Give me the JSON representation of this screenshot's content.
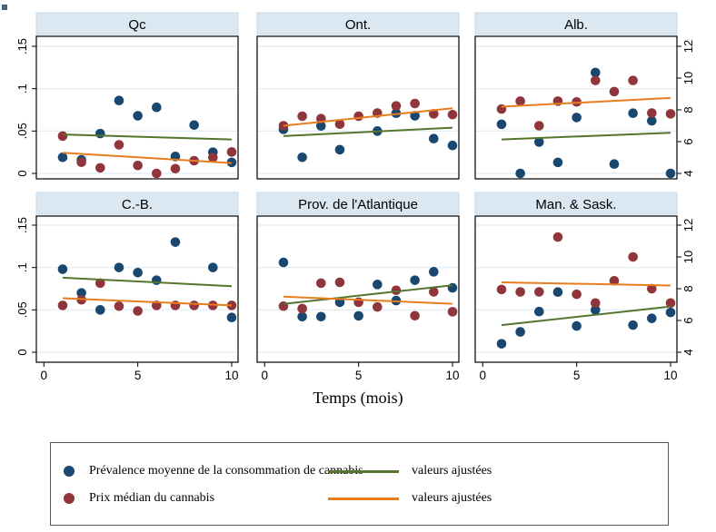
{
  "figure": {
    "xlabel": "Temps (mois)"
  },
  "colors": {
    "prevalence": "#1a476f",
    "price": "#90353b",
    "fit_prevalence": "#55752f",
    "fit_price": "#e87d1e",
    "band": "#dbe8f2",
    "band_border": "#c6daea",
    "gridline": "#dfecf5",
    "plot_border": "#000000",
    "legend_border": "#585858"
  },
  "legend": {
    "prevalence": "Prévalence moyenne de la consommation de cannabis",
    "price": "Prix médian du cannabis",
    "fitted_prevalence": "valeurs ajustées",
    "fitted_price": "valeurs ajustées"
  },
  "chart_data": {
    "type": "scatter",
    "layout": "2x3_small_multiples",
    "grid": true,
    "xlabel": "Temps (mois)",
    "x": [
      1,
      2,
      3,
      4,
      5,
      6,
      7,
      8,
      9,
      10
    ],
    "x_ticks": [
      0,
      5,
      10
    ],
    "x_range": [
      0,
      10.7
    ],
    "left_axis": {
      "series": "prevalence_moyenne",
      "ticks": [
        "0",
        ".05",
        ".1",
        ".15"
      ],
      "tick_values": [
        0,
        0.05,
        0.1,
        0.15
      ],
      "range": [
        0,
        0.157
      ]
    },
    "right_axis": {
      "series": "prix_median",
      "ticks": [
        "4",
        "6",
        "8",
        "10",
        "12"
      ],
      "tick_values": [
        4,
        6,
        8,
        10,
        12
      ],
      "range": [
        4,
        12.5
      ]
    },
    "series_legend": [
      {
        "name": "Prévalence moyenne de la consommation de cannabis",
        "marker": "dot",
        "color_key": "prevalence",
        "axis": "left"
      },
      {
        "name": "Prix médian du cannabis",
        "marker": "dot",
        "color_key": "price",
        "axis": "right"
      },
      {
        "name": "valeurs ajustées",
        "marker": "line",
        "color_key": "fit_prevalence",
        "axis": "left"
      },
      {
        "name": "valeurs ajustées",
        "marker": "line",
        "color_key": "fit_price",
        "axis": "right"
      }
    ],
    "panels": [
      {
        "title": "Qc",
        "prevalence": [
          0.019,
          0.016,
          0.047,
          0.086,
          0.068,
          0.078,
          0.02,
          0.057,
          0.025,
          0.013
        ],
        "price": [
          6.35,
          4.7,
          4.35,
          5.8,
          4.5,
          4.0,
          4.3,
          4.8,
          5.0,
          5.35
        ],
        "fit_prevalence": [
          0.046,
          0.04
        ],
        "fit_price": [
          5.3,
          4.65
        ]
      },
      {
        "title": "Ont.",
        "prevalence": [
          0.052,
          0.019,
          0.056,
          0.028,
          null,
          0.05,
          0.071,
          0.068,
          0.041,
          0.033
        ],
        "price": [
          7.0,
          7.6,
          7.45,
          7.1,
          7.6,
          7.8,
          8.25,
          8.4,
          7.75,
          7.7
        ],
        "fit_prevalence": [
          0.044,
          0.054
        ],
        "fit_price": [
          7.0,
          8.1
        ]
      },
      {
        "title": "Alb.",
        "prevalence": [
          0.058,
          0.0,
          0.037,
          0.013,
          0.066,
          0.119,
          0.011,
          0.071,
          0.062,
          0.0
        ],
        "price": [
          8.05,
          8.55,
          7.0,
          8.55,
          8.5,
          9.85,
          9.15,
          9.85,
          7.8,
          7.75
        ],
        "fit_prevalence": [
          0.04,
          0.048
        ],
        "fit_price": [
          8.2,
          8.75
        ]
      },
      {
        "title": "C.-B.",
        "prevalence": [
          0.098,
          0.07,
          0.05,
          0.1,
          0.094,
          0.085,
          0.13,
          null,
          0.1,
          0.041
        ],
        "price": [
          6.95,
          7.3,
          8.35,
          6.9,
          6.6,
          6.95,
          6.95,
          6.95,
          6.95,
          6.95
        ],
        "fit_prevalence": [
          0.088,
          0.078
        ],
        "fit_price": [
          7.4,
          6.95
        ]
      },
      {
        "title": "Prov. de l'Atlantique",
        "prevalence": [
          0.106,
          0.042,
          0.042,
          0.059,
          0.043,
          0.08,
          0.061,
          0.085,
          0.095,
          0.076
        ],
        "price": [
          6.9,
          6.75,
          8.35,
          8.4,
          7.15,
          6.85,
          7.9,
          6.3,
          7.8,
          6.55
        ],
        "fit_prevalence": [
          0.057,
          0.079
        ],
        "fit_price": [
          7.5,
          7.05
        ]
      },
      {
        "title": "Man. & Sask.",
        "prevalence": [
          0.01,
          0.024,
          0.048,
          0.071,
          0.031,
          0.05,
          null,
          0.032,
          0.04,
          0.047
        ],
        "price": [
          7.95,
          7.8,
          7.8,
          11.25,
          7.65,
          7.1,
          8.5,
          10.0,
          8.0,
          7.1
        ],
        "fit_prevalence": [
          0.032,
          0.054
        ],
        "fit_price": [
          8.4,
          8.2
        ]
      }
    ]
  }
}
